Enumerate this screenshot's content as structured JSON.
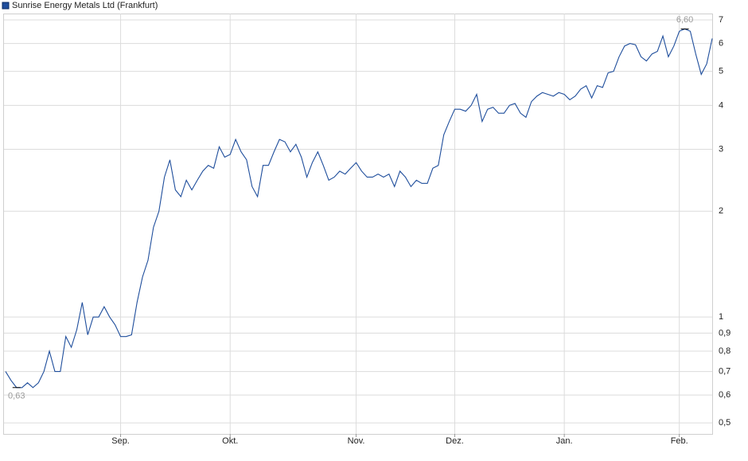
{
  "chart_data": {
    "type": "line",
    "log_scale": true,
    "grid": true,
    "series": [
      {
        "name": "Sunrise Energy Metals Ltd (Frankfurt)",
        "color": "#1f4e9c",
        "values": [
          0.7,
          0.66,
          0.63,
          0.63,
          0.65,
          0.63,
          0.65,
          0.7,
          0.8,
          0.7,
          0.7,
          0.88,
          0.82,
          0.92,
          1.1,
          0.89,
          1.0,
          1.0,
          1.07,
          1.0,
          0.95,
          0.88,
          0.88,
          0.89,
          1.1,
          1.3,
          1.45,
          1.8,
          2.0,
          2.5,
          2.8,
          2.3,
          2.2,
          2.45,
          2.3,
          2.45,
          2.6,
          2.7,
          2.65,
          3.05,
          2.85,
          2.9,
          3.2,
          2.95,
          2.8,
          2.35,
          2.2,
          2.7,
          2.7,
          2.95,
          3.2,
          3.15,
          2.95,
          3.1,
          2.85,
          2.5,
          2.75,
          2.95,
          2.7,
          2.45,
          2.5,
          2.6,
          2.55,
          2.65,
          2.75,
          2.6,
          2.5,
          2.5,
          2.55,
          2.5,
          2.55,
          2.35,
          2.6,
          2.5,
          2.35,
          2.45,
          2.4,
          2.4,
          2.65,
          2.7,
          3.3,
          3.6,
          3.9,
          3.9,
          3.85,
          4.0,
          4.3,
          3.6,
          3.9,
          3.95,
          3.8,
          3.8,
          4.0,
          4.05,
          3.8,
          3.7,
          4.1,
          4.25,
          4.35,
          4.3,
          4.25,
          4.35,
          4.3,
          4.15,
          4.25,
          4.45,
          4.55,
          4.2,
          4.55,
          4.5,
          4.95,
          5.0,
          5.5,
          5.9,
          6.0,
          5.95,
          5.5,
          5.35,
          5.6,
          5.7,
          6.3,
          5.5,
          5.9,
          6.5,
          6.6,
          6.5,
          5.6,
          4.9,
          5.25,
          6.2
        ]
      }
    ],
    "xticks": [
      {
        "value": 21,
        "label": "Sep."
      },
      {
        "value": 41,
        "label": "Okt."
      },
      {
        "value": 64,
        "label": "Nov."
      },
      {
        "value": 82,
        "label": "Dez."
      },
      {
        "value": 102,
        "label": "Jan."
      },
      {
        "value": 123,
        "label": "Feb."
      }
    ],
    "ylim": [
      0.465,
      7.3
    ],
    "yticks": [
      {
        "value": 0.5,
        "label": "0,5"
      },
      {
        "value": 0.6,
        "label": "0,6"
      },
      {
        "value": 0.7,
        "label": "0,7"
      },
      {
        "value": 0.8,
        "label": "0,8"
      },
      {
        "value": 0.9,
        "label": "0,9"
      },
      1,
      2,
      3,
      4,
      5,
      6,
      7
    ],
    "annotations": [
      {
        "value": 6.6,
        "label": "6,60"
      },
      {
        "value": 0.63,
        "label": "0,63"
      }
    ]
  }
}
